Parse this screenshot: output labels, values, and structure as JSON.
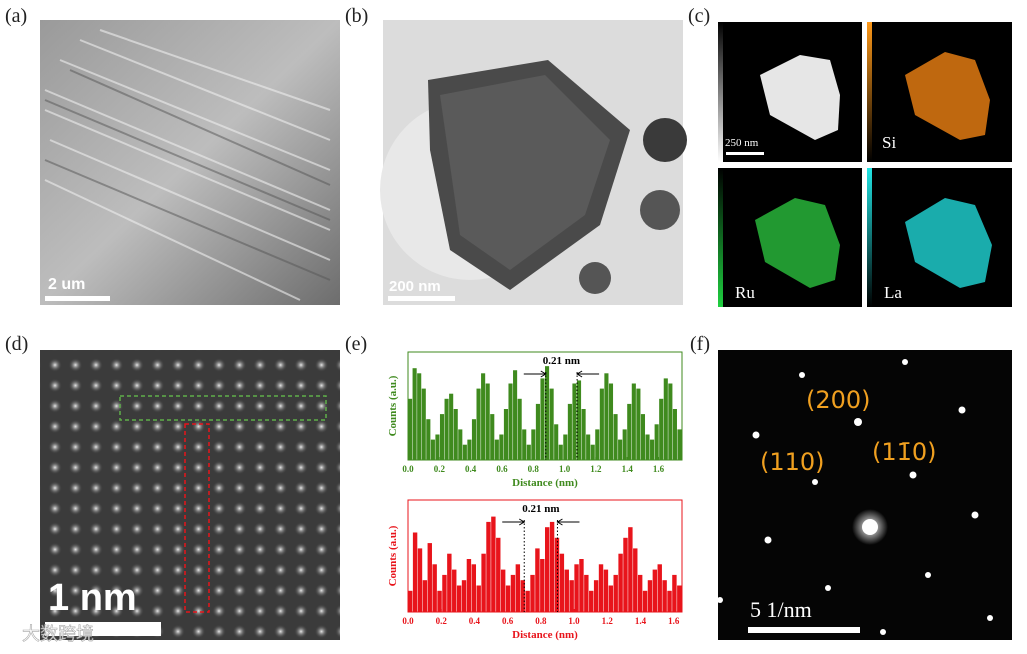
{
  "panels": {
    "a": {
      "label": "(a)",
      "scale_bar": "2 um"
    },
    "b": {
      "label": "(b)",
      "scale_bar": "200 nm"
    },
    "c": {
      "label": "(c)",
      "scale_bar": "250 nm",
      "maps": [
        "Si",
        "Ru",
        "La"
      ]
    },
    "d": {
      "label": "(d)",
      "scale_bar": "1 nm"
    },
    "e": {
      "label": "(e)",
      "charts": [
        {
          "type": "bar",
          "color": "#3f8a1e",
          "xlabel": "Distance (nm)",
          "ylabel": "Counts (a.u.)",
          "annotation": "0.21 nm",
          "xlim": [
            0,
            1.75
          ],
          "xticks": [
            {
              "value": 0,
              "label": "0.0"
            },
            0.2,
            0.4,
            0.6,
            0.8,
            {
              "value": 1,
              "label": "1.0"
            },
            1.2,
            1.4,
            1.6
          ],
          "ylim": [
            0,
            100
          ],
          "values": [
            60,
            90,
            85,
            70,
            40,
            20,
            25,
            45,
            60,
            65,
            50,
            30,
            15,
            20,
            40,
            70,
            85,
            75,
            45,
            20,
            25,
            50,
            75,
            88,
            60,
            30,
            15,
            30,
            55,
            80,
            92,
            70,
            35,
            15,
            25,
            55,
            75,
            78,
            50,
            25,
            15,
            30,
            70,
            85,
            75,
            45,
            20,
            30,
            55,
            75,
            70,
            45,
            25,
            20,
            35,
            60,
            80,
            75,
            50,
            30
          ]
        },
        {
          "type": "bar",
          "color": "#e8141b",
          "xlabel": "Distance (nm)",
          "ylabel": "Counts (a.u.)",
          "annotation": "0.21 nm",
          "xlim": [
            0,
            1.65
          ],
          "xticks": [
            {
              "value": 0,
              "label": "0.0"
            },
            0.2,
            0.4,
            0.6,
            0.8,
            {
              "value": 1,
              "label": "1.0"
            },
            1.2,
            1.4,
            1.6
          ],
          "ylim": [
            0,
            100
          ],
          "values": [
            20,
            75,
            60,
            30,
            65,
            45,
            20,
            35,
            55,
            40,
            25,
            30,
            50,
            45,
            25,
            55,
            85,
            90,
            70,
            40,
            25,
            35,
            45,
            30,
            20,
            35,
            60,
            50,
            80,
            85,
            70,
            55,
            40,
            30,
            45,
            50,
            35,
            20,
            30,
            45,
            40,
            25,
            35,
            55,
            70,
            80,
            60,
            35,
            20,
            30,
            40,
            45,
            30,
            20,
            35,
            25
          ]
        }
      ]
    },
    "f": {
      "label": "(f)",
      "scale_bar": "5 1/nm",
      "planes": [
        "(200)",
        "(110)",
        "(11̄0)"
      ]
    }
  },
  "watermark": "大数跨境"
}
